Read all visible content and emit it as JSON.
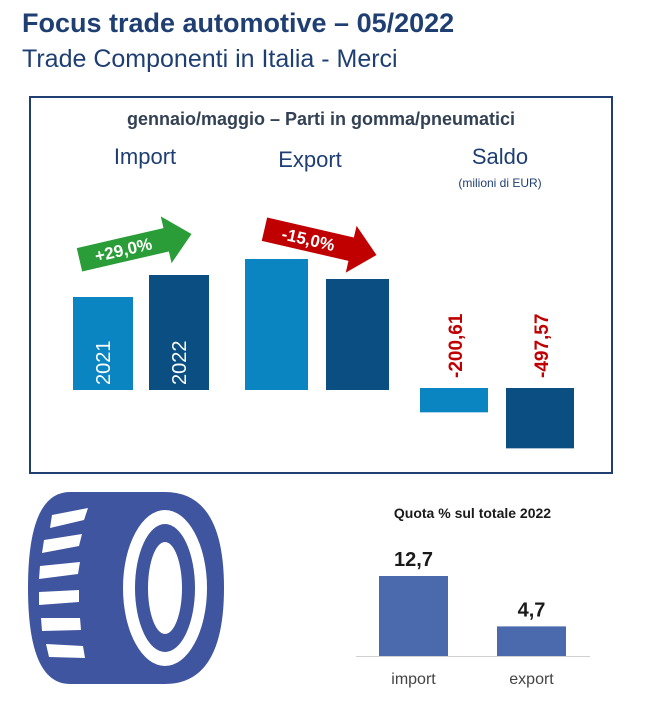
{
  "header": {
    "title": "Focus trade automotive – 05/2022",
    "subtitle": "Trade Componenti in Italia - Merci"
  },
  "panel": {
    "title": "gennaio/maggio – Parti in gomma/pneumatici",
    "groups": [
      "Import",
      "Export",
      "Saldo"
    ],
    "unit": "(milioni di EUR)"
  },
  "colors": {
    "light_blue": "#0b84c2",
    "dark_blue": "#0b4f82",
    "green": "#2a9d38",
    "red": "#c00000",
    "quota_bar": "#4b69ad",
    "dark_text": "#1f3f73"
  },
  "chart_data": [
    {
      "type": "bar",
      "title": "gennaio/maggio – Parti in gomma/pneumatici",
      "categories": [
        "Import",
        "Export",
        "Saldo"
      ],
      "series": [
        {
          "name": "2021",
          "values": [
            null,
            null,
            -200.61
          ]
        },
        {
          "name": "2022",
          "values": [
            null,
            null,
            -497.57
          ]
        }
      ],
      "bar_labels": [
        "2021",
        "2022"
      ],
      "value_labels": [
        "-200,61",
        "-497,57"
      ],
      "relative_height_estimate": {
        "Import": [
          0.93,
          1.15
        ],
        "Export": [
          1.31,
          1.11
        ]
      },
      "changes": [
        {
          "group": "Import",
          "label": "+29,0%",
          "direction": "up",
          "color": "green"
        },
        {
          "group": "Export",
          "label": "-15,0%",
          "direction": "down",
          "color": "red"
        }
      ],
      "unit": "(milioni di EUR)"
    },
    {
      "type": "bar",
      "title": "Quota % sul totale 2022",
      "categories": [
        "import",
        "export"
      ],
      "values": [
        12.7,
        4.7
      ],
      "value_labels": [
        "12,7",
        "4,7"
      ],
      "ylim": [
        0,
        15
      ]
    }
  ],
  "icons": [
    "tire-icon",
    "arrow-up-icon",
    "arrow-down-icon"
  ]
}
